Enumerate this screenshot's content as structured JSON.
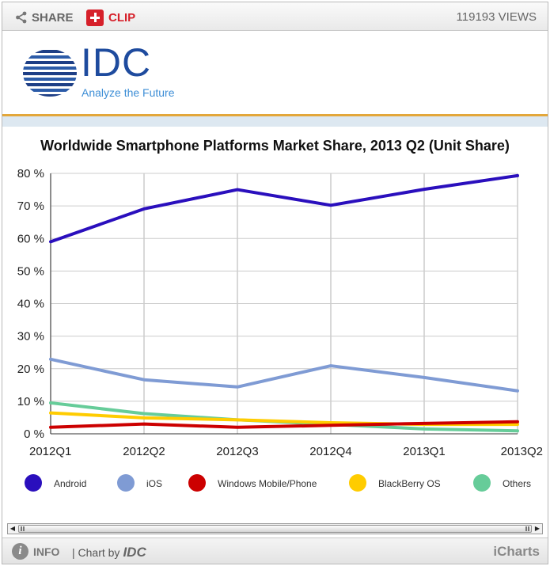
{
  "toolbar": {
    "share_label": "SHARE",
    "clip_label": "CLIP",
    "views_label": "119193 VIEWS"
  },
  "logo": {
    "name": "IDC",
    "tagline": "Analyze the Future"
  },
  "footer": {
    "info_label": "INFO",
    "chart_by_label": "| Chart by",
    "chart_by_brand": "IDC",
    "brand": "iCharts"
  },
  "colors": {
    "android": "#2a0fbd",
    "ios": "#7f9bd4",
    "windows": "#cc0000",
    "blackberry": "#ffcc00",
    "others": "#66cc99",
    "grid": "#cccccc"
  },
  "chart_data": {
    "type": "line",
    "title": "Worldwide Smartphone Platforms Market Share, 2013 Q2 (Unit Share)",
    "categories": [
      "2012Q1",
      "2012Q2",
      "2012Q3",
      "2012Q4",
      "2013Q1",
      "2013Q2"
    ],
    "ylim": [
      0,
      80
    ],
    "yticks": [
      0,
      10,
      20,
      30,
      40,
      50,
      60,
      70,
      80
    ],
    "ytick_labels": [
      "0 %",
      "10 %",
      "20 %",
      "30 %",
      "40 %",
      "50 %",
      "60 %",
      "70 %",
      "80 %"
    ],
    "grid": true,
    "legend_position": "bottom",
    "series": [
      {
        "name": "Android",
        "color": "#2a0fbd",
        "values": [
          59.0,
          69.1,
          75.0,
          70.2,
          75.1,
          79.3
        ]
      },
      {
        "name": "iOS",
        "color": "#7f9bd4",
        "values": [
          22.9,
          16.6,
          14.4,
          20.9,
          17.3,
          13.2
        ]
      },
      {
        "name": "Windows Mobile/Phone",
        "color": "#cc0000",
        "values": [
          2.0,
          3.0,
          2.0,
          2.6,
          3.2,
          3.7
        ]
      },
      {
        "name": "BlackBerry OS",
        "color": "#ffcc00",
        "values": [
          6.4,
          4.9,
          4.3,
          3.4,
          2.9,
          2.9
        ]
      },
      {
        "name": "Others",
        "color": "#66cc99",
        "values": [
          9.5,
          6.2,
          4.3,
          2.9,
          1.5,
          0.9
        ]
      }
    ]
  }
}
